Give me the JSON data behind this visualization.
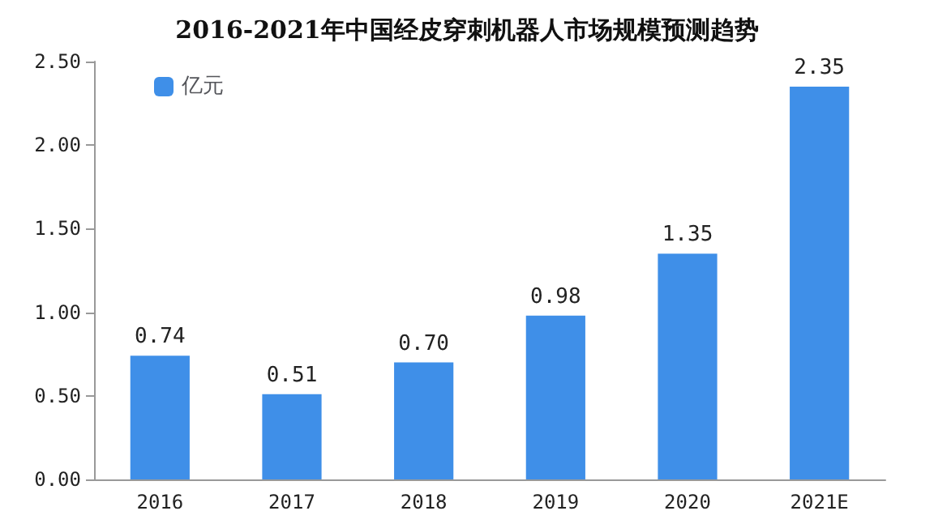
{
  "chart_data": {
    "type": "bar",
    "title": "2016-2021年中国经皮穿刺机器人市场规模预测趋势",
    "categories": [
      "2016",
      "2017",
      "2018",
      "2019",
      "2020",
      "2021E"
    ],
    "series": [
      {
        "name": "亿元",
        "color": "#3f8fe8",
        "values": [
          0.74,
          0.51,
          0.7,
          0.98,
          1.35,
          2.35
        ]
      }
    ],
    "value_labels": [
      "0.74",
      "0.51",
      "0.70",
      "0.98",
      "1.35",
      "2.35"
    ],
    "ylim": [
      0,
      2.5
    ],
    "yticks": [
      {
        "value": 0,
        "label": "0.00"
      },
      {
        "value": 0.5,
        "label": "0.50"
      },
      {
        "value": 1,
        "label": "1.00"
      },
      {
        "value": 1.5,
        "label": "1.50"
      },
      {
        "value": 2,
        "label": "2.00"
      },
      {
        "value": 2.5,
        "label": "2.50"
      }
    ],
    "grid": false,
    "legend": "top left"
  }
}
